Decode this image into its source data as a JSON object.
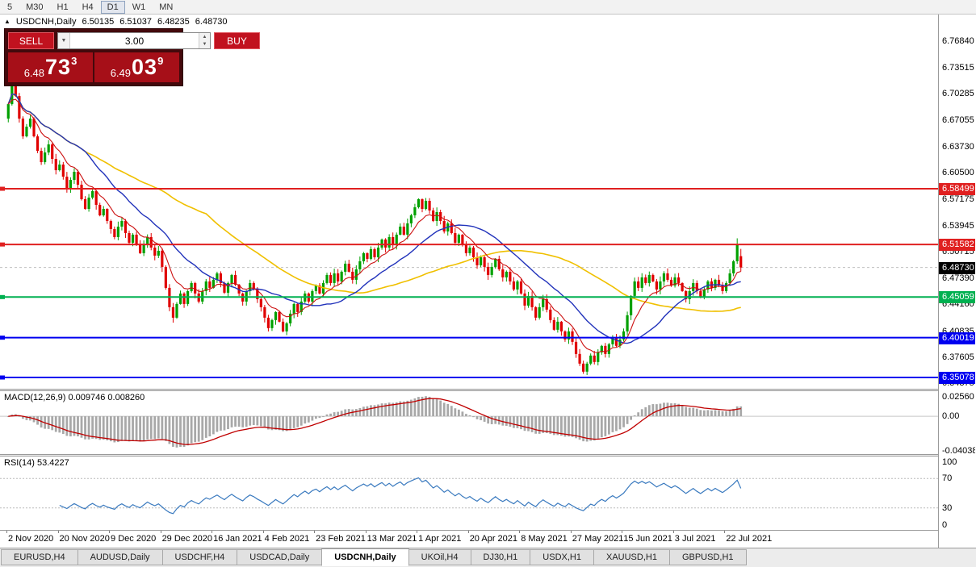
{
  "toolbar": {
    "timeframes": [
      {
        "label": "5"
      },
      {
        "label": "M30"
      },
      {
        "label": "H1"
      },
      {
        "label": "H4"
      },
      {
        "label": "D1",
        "active": true
      },
      {
        "label": "W1"
      },
      {
        "label": "MN"
      }
    ]
  },
  "header": {
    "symbol": "USDCNH,Daily",
    "open": "6.50135",
    "high": "6.51037",
    "low": "6.48235",
    "close": "6.48730"
  },
  "trade_panel": {
    "sell_label": "SELL",
    "buy_label": "BUY",
    "volume": "3.00",
    "sell_price": {
      "prefix": "6.48",
      "big": "73",
      "sup": "3"
    },
    "buy_price": {
      "prefix": "6.49",
      "big": "03",
      "sup": "9"
    }
  },
  "price_axis": {
    "labels": [
      "6.76840",
      "6.73515",
      "6.70285",
      "6.67055",
      "6.63730",
      "6.60500",
      "6.57175",
      "6.53945",
      "6.50715",
      "6.47390",
      "6.44160",
      "6.40835",
      "6.37605",
      "6.34375"
    ],
    "current": "6.48730",
    "current_bg": "#000000"
  },
  "levels": [
    {
      "label": "6.58499",
      "value": 6.58499,
      "color": "#e02020"
    },
    {
      "label": "6.51582",
      "value": 6.51582,
      "color": "#e02020"
    },
    {
      "label": "6.45059",
      "value": 6.45059,
      "color": "#00b050"
    },
    {
      "label": "6.40019",
      "value": 6.40019,
      "color": "#0000f0"
    },
    {
      "label": "6.35078",
      "value": 6.35078,
      "color": "#0000f0"
    }
  ],
  "macd": {
    "label": "MACD(12,26,9) 0.009746 0.008260",
    "axis_labels": [
      {
        "text": "0.02560",
        "value": 0.0256
      },
      {
        "text": "0.00",
        "value": 0
      },
      {
        "text": "-0.04038",
        "value": -0.04038
      }
    ],
    "histogram_color": "#a8a8a8",
    "signal_color": "#c00000"
  },
  "rsi": {
    "label": "RSI(14) 53.4227",
    "axis_labels": [
      {
        "text": "100",
        "value": 100
      },
      {
        "text": "70",
        "value": 70
      },
      {
        "text": "30",
        "value": 30
      },
      {
        "text": "0",
        "value": 0
      }
    ],
    "guides": [
      70,
      30
    ],
    "line_color": "#3a7abf"
  },
  "time_axis": [
    "2 Nov 2020",
    "20 Nov 2020",
    "9 Dec 2020",
    "29 Dec 2020",
    "16 Jan 2021",
    "4 Feb 2021",
    "23 Feb 2021",
    "13 Mar 2021",
    "1 Apr 2021",
    "20 Apr 2021",
    "8 May 2021",
    "27 May 2021",
    "15 Jun 2021",
    "3 Jul 2021",
    "22 Jul 2021"
  ],
  "tabs": [
    {
      "label": "EURUSD,H4"
    },
    {
      "label": "AUDUSD,Daily"
    },
    {
      "label": "USDCHF,H4"
    },
    {
      "label": "USDCAD,Daily"
    },
    {
      "label": "USDCNH,Daily",
      "active": true
    },
    {
      "label": "UKOil,H4"
    },
    {
      "label": "DJ30,H1"
    },
    {
      "label": "USDX,H1"
    },
    {
      "label": "XAUUSD,H1"
    },
    {
      "label": "GBPUSD,H1"
    }
  ],
  "chart_data": {
    "type": "candlestick",
    "symbol": "USDCNH",
    "timeframe": "Daily",
    "visible_price_range": [
      6.3368,
      6.8012
    ],
    "up_color": "#00a000",
    "down_color": "#e00000",
    "ma_lines": [
      {
        "period": 55,
        "color": "#f0c000"
      },
      {
        "period": 22,
        "color": "#2233bb"
      },
      {
        "period": 9,
        "color": "#cc1111"
      }
    ],
    "bid_line": 6.4873,
    "first_open": 6.672,
    "spike": {
      "index": 199,
      "high": 6.5235
    },
    "last_candle": {
      "o": 6.50135,
      "h": 6.51037,
      "l": 6.48235,
      "c": 6.4873
    },
    "closes": [
      6.69,
      6.715,
      6.7,
      6.672,
      6.65,
      6.662,
      6.672,
      6.65,
      6.632,
      6.618,
      6.63,
      6.64,
      6.622,
      6.608,
      6.615,
      6.6,
      6.585,
      6.596,
      6.606,
      6.59,
      6.572,
      6.56,
      6.574,
      6.582,
      6.565,
      6.552,
      6.56,
      6.545,
      6.535,
      6.525,
      6.538,
      6.545,
      6.53,
      6.518,
      6.528,
      6.515,
      6.505,
      6.515,
      6.525,
      6.512,
      6.502,
      6.508,
      6.488,
      6.462,
      6.438,
      6.425,
      6.442,
      6.455,
      6.442,
      6.458,
      6.468,
      6.455,
      6.445,
      6.458,
      6.47,
      6.462,
      6.472,
      6.48,
      6.468,
      6.456,
      6.468,
      6.478,
      6.466,
      6.455,
      6.445,
      6.458,
      6.468,
      6.46,
      6.448,
      6.438,
      6.425,
      6.412,
      6.422,
      6.432,
      6.42,
      6.408,
      6.418,
      6.43,
      6.442,
      6.432,
      6.445,
      6.455,
      6.445,
      6.458,
      6.465,
      6.455,
      6.468,
      6.478,
      6.468,
      6.48,
      6.47,
      6.482,
      6.492,
      6.482,
      6.472,
      6.485,
      6.495,
      6.505,
      6.498,
      6.51,
      6.5,
      6.512,
      6.522,
      6.512,
      6.525,
      6.515,
      6.528,
      6.538,
      6.528,
      6.542,
      6.552,
      6.562,
      6.572,
      6.56,
      6.57,
      6.558,
      6.545,
      6.556,
      6.545,
      6.532,
      6.542,
      6.53,
      6.518,
      6.528,
      6.515,
      6.505,
      6.512,
      6.5,
      6.49,
      6.5,
      6.488,
      6.478,
      6.488,
      6.498,
      6.485,
      6.475,
      6.482,
      6.47,
      6.46,
      6.47,
      6.455,
      6.44,
      6.452,
      6.438,
      6.425,
      6.438,
      6.448,
      6.435,
      6.422,
      6.41,
      6.42,
      6.408,
      6.398,
      6.408,
      6.395,
      6.38,
      6.368,
      6.358,
      6.368,
      6.378,
      6.37,
      6.382,
      6.39,
      6.38,
      6.392,
      6.4,
      6.39,
      6.398,
      6.408,
      6.428,
      6.452,
      6.47,
      6.462,
      6.475,
      6.468,
      6.478,
      6.47,
      6.46,
      6.47,
      6.48,
      6.472,
      6.465,
      6.475,
      6.468,
      6.458,
      6.448,
      6.458,
      6.468,
      6.458,
      6.45,
      6.46,
      6.47,
      6.462,
      6.472,
      6.465,
      6.458,
      6.468,
      6.48,
      6.495,
      6.515,
      6.4873
    ]
  }
}
